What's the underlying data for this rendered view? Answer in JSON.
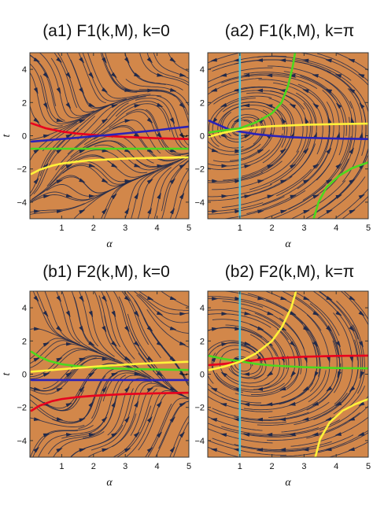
{
  "colors": {
    "background": "#D2874A",
    "stream": "#222a4a",
    "frame": "#333333",
    "red": "#E8001E",
    "blue": "#2A22B8",
    "green": "#4CD81E",
    "yellow": "#FFF23A",
    "cyan": "#55C6D8"
  },
  "chart_data": [
    {
      "type": "streamplot",
      "title": "(a1) F1(k,M), k=0",
      "xlabel": "α",
      "ylabel": "t",
      "xlim": [
        0,
        5
      ],
      "ylim": [
        -5,
        5
      ],
      "xticks": [
        "1",
        "2",
        "3",
        "4",
        "5"
      ],
      "yticks": [
        "−4",
        "−2",
        "0",
        "2",
        "4"
      ],
      "flow": "a1",
      "curves": [
        {
          "color": "red",
          "points": [
            [
              0.05,
              0.75
            ],
            [
              0.5,
              0.45
            ],
            [
              1,
              0.25
            ],
            [
              1.5,
              0.13
            ],
            [
              2,
              0.05
            ],
            [
              2.5,
              -0.02
            ],
            [
              3,
              -0.07
            ],
            [
              4,
              -0.15
            ],
            [
              5,
              -0.2
            ]
          ]
        },
        {
          "color": "blue",
          "points": [
            [
              0.05,
              -0.35
            ],
            [
              0.5,
              -0.28
            ],
            [
              1,
              -0.2
            ],
            [
              1.5,
              -0.12
            ],
            [
              2,
              -0.03
            ],
            [
              2.5,
              0.05
            ],
            [
              3,
              0.14
            ],
            [
              3.5,
              0.24
            ],
            [
              4,
              0.33
            ],
            [
              4.5,
              0.45
            ],
            [
              5,
              0.55
            ]
          ]
        },
        {
          "color": "green",
          "points": [
            [
              0.05,
              -0.78
            ],
            [
              5,
              -0.78
            ]
          ]
        },
        {
          "color": "yellow",
          "points": [
            [
              0.05,
              -2.3
            ],
            [
              0.3,
              -2.05
            ],
            [
              0.7,
              -1.8
            ],
            [
              1,
              -1.68
            ],
            [
              1.5,
              -1.55
            ],
            [
              2,
              -1.47
            ],
            [
              3,
              -1.38
            ],
            [
              4,
              -1.33
            ],
            [
              5,
              -1.3
            ]
          ]
        }
      ]
    },
    {
      "type": "streamplot",
      "title": "(a2) F1(k,M), k=π",
      "xlabel": "α",
      "ylabel": "t",
      "xlim": [
        0,
        5
      ],
      "ylim": [
        -5,
        5
      ],
      "xticks": [
        "1",
        "2",
        "3",
        "4",
        "5"
      ],
      "yticks": [
        "−4",
        "−2",
        "0",
        "2",
        "4"
      ],
      "flow": "a2",
      "curves": [
        {
          "color": "cyan",
          "points": [
            [
              1,
              -5
            ],
            [
              1,
              5
            ]
          ]
        },
        {
          "color": "blue",
          "points": [
            [
              0.05,
              0.9
            ],
            [
              0.4,
              0.6
            ],
            [
              0.7,
              0.35
            ],
            [
              1,
              0.25
            ],
            [
              1.5,
              0.1
            ],
            [
              2,
              0
            ],
            [
              2.5,
              -0.08
            ],
            [
              3,
              -0.12
            ],
            [
              4,
              -0.17
            ],
            [
              5,
              -0.2
            ]
          ]
        },
        {
          "color": "yellow",
          "points": [
            [
              0.05,
              -0.05
            ],
            [
              0.5,
              0.18
            ],
            [
              1,
              0.38
            ],
            [
              1.5,
              0.5
            ],
            [
              2,
              0.58
            ],
            [
              3,
              0.66
            ],
            [
              4,
              0.7
            ],
            [
              5,
              0.73
            ]
          ]
        },
        {
          "color": "green",
          "points": [
            [
              0.05,
              0.2
            ],
            [
              0.6,
              0.35
            ],
            [
              1,
              0.45
            ],
            [
              1.5,
              0.8
            ],
            [
              2,
              1.35
            ],
            [
              2.3,
              2
            ],
            [
              2.5,
              3
            ],
            [
              2.65,
              4.2
            ],
            [
              2.72,
              5
            ]
          ]
        },
        {
          "color": "green",
          "points": [
            [
              3.3,
              -5
            ],
            [
              3.45,
              -4
            ],
            [
              3.7,
              -3.1
            ],
            [
              4.1,
              -2.4
            ],
            [
              4.5,
              -1.95
            ],
            [
              5,
              -1.6
            ]
          ]
        }
      ]
    },
    {
      "type": "streamplot",
      "title": "(b1) F2(k,M), k=0",
      "xlabel": "α",
      "ylabel": "t",
      "xlim": [
        0,
        5
      ],
      "ylim": [
        -5,
        5
      ],
      "xticks": [
        "1",
        "2",
        "3",
        "4",
        "5"
      ],
      "yticks": [
        "−4",
        "−2",
        "0",
        "2",
        "4"
      ],
      "flow": "b1",
      "curves": [
        {
          "color": "green",
          "points": [
            [
              0.05,
              1.35
            ],
            [
              0.3,
              1.05
            ],
            [
              0.6,
              0.8
            ],
            [
              1,
              0.6
            ],
            [
              1.5,
              0.48
            ],
            [
              2,
              0.4
            ],
            [
              3,
              0.32
            ],
            [
              4,
              0.28
            ],
            [
              5,
              0.25
            ]
          ]
        },
        {
          "color": "yellow",
          "points": [
            [
              0.05,
              0.15
            ],
            [
              0.5,
              0.22
            ],
            [
              1,
              0.3
            ],
            [
              1.5,
              0.38
            ],
            [
              2,
              0.45
            ],
            [
              2.5,
              0.52
            ],
            [
              3,
              0.58
            ],
            [
              4,
              0.68
            ],
            [
              5,
              0.75
            ]
          ]
        },
        {
          "color": "blue",
          "points": [
            [
              0.05,
              -0.35
            ],
            [
              5,
              -0.35
            ]
          ]
        },
        {
          "color": "red",
          "points": [
            [
              0.05,
              -2.2
            ],
            [
              0.3,
              -1.9
            ],
            [
              0.7,
              -1.62
            ],
            [
              1,
              -1.5
            ],
            [
              1.5,
              -1.38
            ],
            [
              2,
              -1.3
            ],
            [
              3,
              -1.2
            ],
            [
              4,
              -1.15
            ],
            [
              5,
              -1.12
            ]
          ]
        }
      ]
    },
    {
      "type": "streamplot",
      "title": "(b2) F2(k,M), k=π",
      "xlabel": "α",
      "ylabel": "t",
      "xlim": [
        0,
        5
      ],
      "ylim": [
        -5,
        5
      ],
      "xticks": [
        "1",
        "2",
        "3",
        "4",
        "5"
      ],
      "yticks": [
        "−4",
        "−2",
        "0",
        "2",
        "4"
      ],
      "flow": "b2",
      "curves": [
        {
          "color": "cyan",
          "points": [
            [
              1,
              -5
            ],
            [
              1,
              5
            ]
          ]
        },
        {
          "color": "red",
          "points": [
            [
              0.05,
              0.55
            ],
            [
              0.5,
              0.62
            ],
            [
              1,
              0.72
            ],
            [
              1.5,
              0.85
            ],
            [
              2,
              0.95
            ],
            [
              3,
              1.05
            ],
            [
              4,
              1.1
            ],
            [
              5,
              1.12
            ]
          ]
        },
        {
          "color": "green",
          "points": [
            [
              0.05,
              1.1
            ],
            [
              0.5,
              0.92
            ],
            [
              1,
              0.78
            ],
            [
              1.5,
              0.62
            ],
            [
              2,
              0.52
            ],
            [
              3,
              0.42
            ],
            [
              4,
              0.37
            ],
            [
              5,
              0.35
            ]
          ]
        },
        {
          "color": "yellow",
          "points": [
            [
              0.05,
              0.25
            ],
            [
              0.5,
              0.45
            ],
            [
              1,
              0.75
            ],
            [
              1.5,
              1.25
            ],
            [
              2,
              2
            ],
            [
              2.3,
              2.8
            ],
            [
              2.6,
              4
            ],
            [
              2.75,
              5
            ]
          ]
        },
        {
          "color": "yellow",
          "points": [
            [
              3.35,
              -5
            ],
            [
              3.5,
              -3.9
            ],
            [
              3.8,
              -2.9
            ],
            [
              4.2,
              -2.2
            ],
            [
              4.6,
              -1.8
            ],
            [
              5,
              -1.5
            ]
          ]
        }
      ]
    }
  ]
}
